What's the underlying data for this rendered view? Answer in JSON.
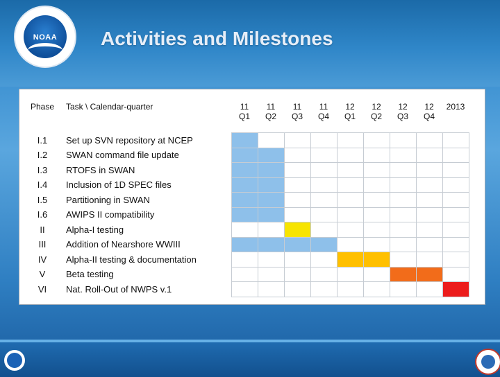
{
  "header": {
    "title": "Activities and Milestones"
  },
  "logo": {
    "text": "NOAA"
  },
  "table": {
    "phase_header": "Phase",
    "task_header": "Task \\ Calendar-quarter",
    "quarters": [
      {
        "l1": "11",
        "l2": "Q1"
      },
      {
        "l1": "11",
        "l2": "Q2"
      },
      {
        "l1": "11",
        "l2": "Q3"
      },
      {
        "l1": "11",
        "l2": "Q4"
      },
      {
        "l1": "12",
        "l2": "Q1"
      },
      {
        "l1": "12",
        "l2": "Q2"
      },
      {
        "l1": "12",
        "l2": "Q3"
      },
      {
        "l1": "12",
        "l2": "Q4"
      },
      {
        "l1": "2013",
        "l2": ""
      }
    ],
    "rows": [
      {
        "phase": "I.1",
        "task": "Set up SVN repository at NCEP",
        "fill": [
          "blue",
          "",
          "",
          "",
          "",
          "",
          "",
          "",
          ""
        ]
      },
      {
        "phase": "I.2",
        "task": "SWAN command file update",
        "fill": [
          "blue",
          "blue",
          "",
          "",
          "",
          "",
          "",
          "",
          ""
        ]
      },
      {
        "phase": "I.3",
        "task": "RTOFS in SWAN",
        "fill": [
          "blue",
          "blue",
          "",
          "",
          "",
          "",
          "",
          "",
          ""
        ]
      },
      {
        "phase": "I.4",
        "task": "Inclusion of 1D SPEC files",
        "fill": [
          "blue",
          "blue",
          "",
          "",
          "",
          "",
          "",
          "",
          ""
        ]
      },
      {
        "phase": "I.5",
        "task": "Partitioning in SWAN",
        "fill": [
          "blue",
          "blue",
          "",
          "",
          "",
          "",
          "",
          "",
          ""
        ]
      },
      {
        "phase": "I.6",
        "task": "AWIPS II compatibility",
        "fill": [
          "blue",
          "blue",
          "",
          "",
          "",
          "",
          "",
          "",
          ""
        ]
      },
      {
        "phase": "II",
        "task": "Alpha-I testing",
        "fill": [
          "",
          "",
          "yellow",
          "",
          "",
          "",
          "",
          "",
          ""
        ]
      },
      {
        "phase": "III",
        "task": "Addition of Nearshore WWIII",
        "fill": [
          "blue",
          "blue",
          "blue",
          "blue",
          "",
          "",
          "",
          "",
          ""
        ]
      },
      {
        "phase": "IV",
        "task": "Alpha-II testing & documentation",
        "fill": [
          "",
          "",
          "",
          "",
          "amber",
          "amber",
          "",
          "",
          ""
        ]
      },
      {
        "phase": "V",
        "task": "Beta testing",
        "fill": [
          "",
          "",
          "",
          "",
          "",
          "",
          "orange",
          "orange",
          ""
        ]
      },
      {
        "phase": "VI",
        "task": "Nat. Roll-Out of NWPS v.1",
        "fill": [
          "",
          "",
          "",
          "",
          "",
          "",
          "",
          "",
          "red"
        ]
      }
    ],
    "colors": {
      "blue": "#8ec0ea",
      "yellow": "#f7e400",
      "amber": "#ffc000",
      "orange": "#f26c1a",
      "red": "#ec1c1c"
    }
  }
}
